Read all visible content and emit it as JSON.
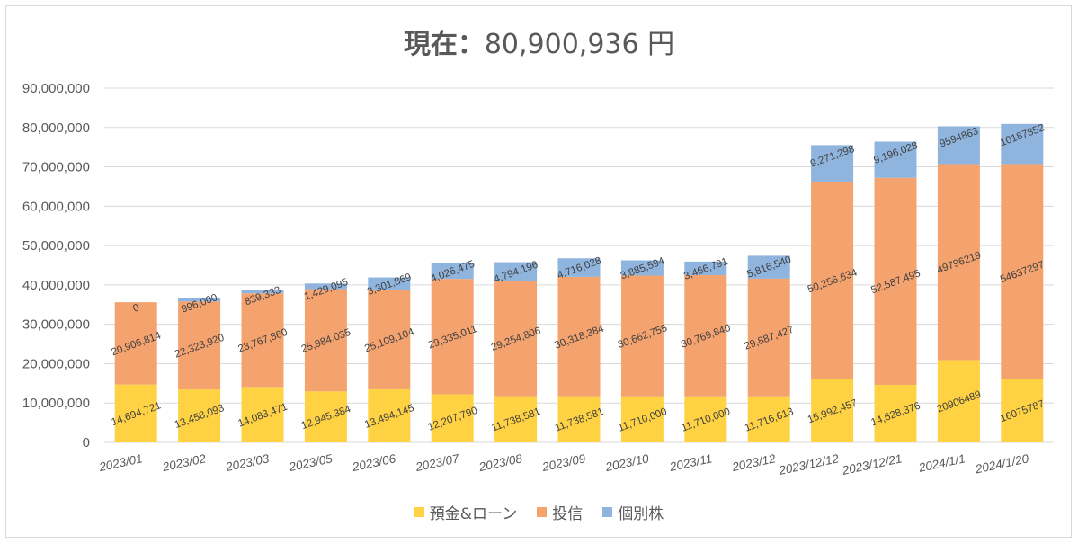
{
  "title": {
    "prefix": "現在：",
    "amount": "80,900,936",
    "suffix": " 円"
  },
  "chart_data": {
    "type": "bar",
    "stacked": true,
    "categories": [
      "2023/01",
      "2023/02",
      "2023/03",
      "2023/05",
      "2023/06",
      "2023/07",
      "2023/08",
      "2023/09",
      "2023/10",
      "2023/11",
      "2023/12",
      "2023/12/12",
      "2023/12/21",
      "2024/1/1",
      "2024/1/20"
    ],
    "ylim": [
      0,
      90000000
    ],
    "yticks": [
      "0",
      "10,000,000",
      "20,000,000",
      "30,000,000",
      "40,000,000",
      "50,000,000",
      "60,000,000",
      "70,000,000",
      "80,000,000",
      "90,000,000"
    ],
    "grid": true,
    "legend_position": "bottom",
    "series": [
      {
        "name": "預金&ローン",
        "color": "#ffd243",
        "values": [
          14694721,
          13458093,
          14083471,
          12945384,
          13494145,
          12207790,
          11738581,
          11738581,
          11710000,
          11710000,
          11716613,
          15992457,
          14628376,
          20906489,
          16075787
        ],
        "labels": [
          "14,694,721",
          "13,458,093",
          "14,083,471",
          "12,945,384",
          "13,494,145",
          "12,207,790",
          "11,738,581",
          "11,738,581",
          "11,710,000",
          "11,710,000",
          "11,716,613",
          "15,992,457",
          "14,628,376",
          "20906489",
          "16075787"
        ]
      },
      {
        "name": "投信",
        "color": "#f4a36f",
        "values": [
          20906814,
          22323920,
          23767860,
          25984035,
          25109104,
          29335011,
          29254806,
          30318384,
          30662755,
          30769840,
          29887427,
          50256634,
          52587495,
          49796219,
          54637297
        ],
        "labels": [
          "20,906,814",
          "22,323,920",
          "23,767,860",
          "25,984,035",
          "25,109,104",
          "29,335,011",
          "29,254,806",
          "30,318,384",
          "30,662,755",
          "30,769,840",
          "29,887,427",
          "50,256,634",
          "52,587,495",
          "49796219",
          "54637297"
        ]
      },
      {
        "name": "個別株",
        "color": "#8fb4dd",
        "values": [
          0,
          996000,
          839333,
          1429095,
          3301869,
          4026475,
          4794196,
          4716028,
          3885594,
          3466791,
          5816540,
          9271298,
          9196028,
          9594863,
          10187852
        ],
        "labels": [
          "0",
          "996,000",
          "839,333",
          "1,429,095",
          "3,301,869",
          "4,026,475",
          "4,794,196",
          "4,716,028",
          "3,885,594",
          "3,466,791",
          "5,816,540",
          "9,271,298",
          "9,196,028",
          "9594863",
          "10187852"
        ]
      }
    ]
  }
}
